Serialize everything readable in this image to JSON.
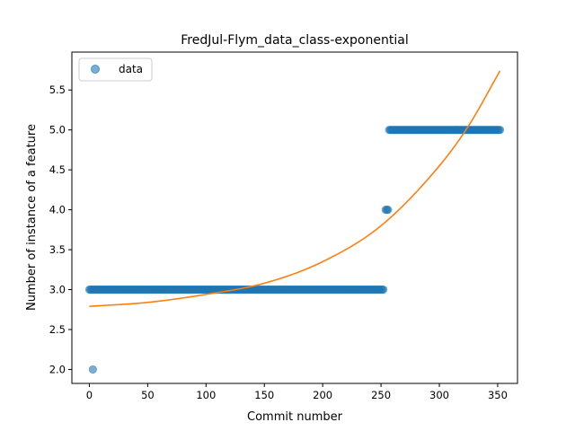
{
  "chart_data": {
    "type": "scatter",
    "title": "FredJul-Flym_data_class-exponential",
    "xlabel": "Commit number",
    "ylabel": "Number of instance of a feature",
    "xlim": [
      -15,
      367
    ],
    "ylim": [
      1.825,
      5.975
    ],
    "xticks": [
      0,
      50,
      100,
      150,
      200,
      250,
      300,
      350
    ],
    "yticks": [
      2.0,
      2.5,
      3.0,
      3.5,
      4.0,
      4.5,
      5.0,
      5.5
    ],
    "grid": false,
    "legend_position": "upper-left",
    "colors": {
      "data": "#1f77b4",
      "fit": "#ff7f0e"
    },
    "series": [
      {
        "name": "data",
        "kind": "scatter",
        "segments": [
          {
            "x_start": 3,
            "x_end": 3,
            "y": 2.0
          },
          {
            "x_start": 0,
            "x_end": 252,
            "y": 3.0
          },
          {
            "x_start": 254,
            "x_end": 256,
            "y": 4.0
          },
          {
            "x_start": 257,
            "x_end": 352,
            "y": 5.0
          }
        ]
      },
      {
        "name": "",
        "kind": "line",
        "x": [
          0,
          50,
          100,
          150,
          200,
          250,
          300,
          325,
          352
        ],
        "y": [
          2.79,
          2.84,
          2.94,
          3.08,
          3.35,
          3.8,
          4.55,
          5.05,
          5.74
        ]
      }
    ]
  }
}
